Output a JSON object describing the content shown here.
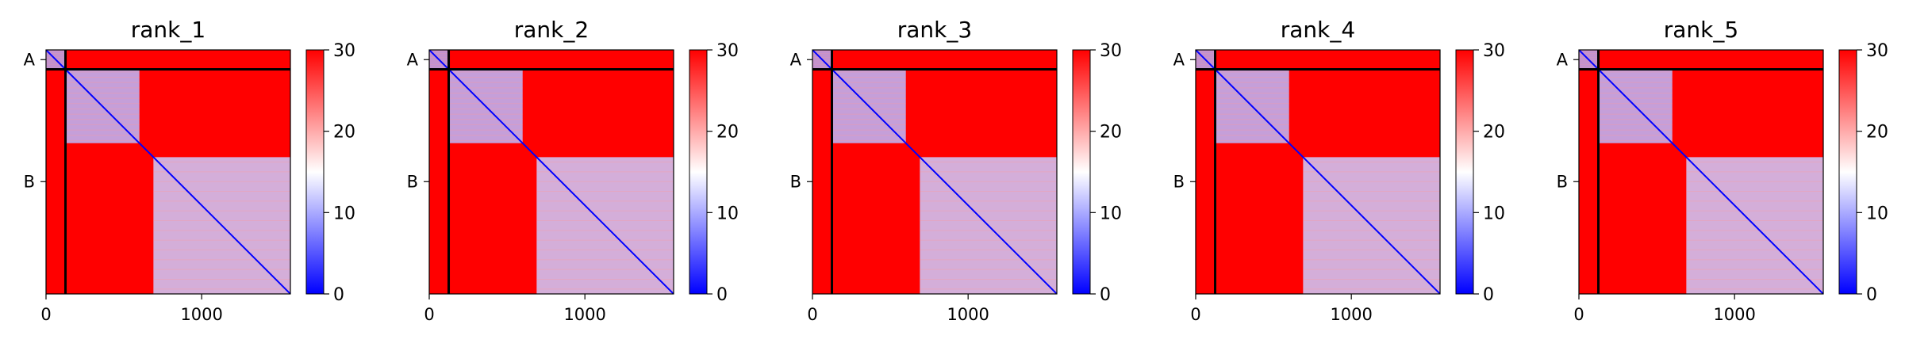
{
  "figure": {
    "background": "#ffffff"
  },
  "chart_data": [
    {
      "type": "heatmap",
      "title": "rank_1",
      "x_ticks": [
        0,
        1000
      ],
      "y_tick_labels": [
        "A",
        "B"
      ],
      "chain_boundary": 125,
      "xlim": [
        0,
        1570
      ],
      "colorbar": {
        "ticks": [
          0,
          10,
          20,
          30
        ],
        "range": [
          0,
          30
        ],
        "colors": [
          "#0000ff",
          "#ffffff",
          "#ff0000"
        ]
      },
      "blocks": [
        {
          "x": [
            0,
            125
          ],
          "y": [
            0,
            125
          ],
          "value": 10
        },
        {
          "x": [
            125,
            600
          ],
          "y": [
            125,
            600
          ],
          "value": 11
        },
        {
          "x": [
            690,
            1570
          ],
          "y": [
            690,
            1570
          ],
          "value": 12
        }
      ]
    },
    {
      "type": "heatmap",
      "title": "rank_2",
      "x_ticks": [
        0,
        1000
      ],
      "y_tick_labels": [
        "A",
        "B"
      ],
      "chain_boundary": 125,
      "xlim": [
        0,
        1570
      ],
      "colorbar": {
        "ticks": [
          0,
          10,
          20,
          30
        ],
        "range": [
          0,
          30
        ],
        "colors": [
          "#0000ff",
          "#ffffff",
          "#ff0000"
        ]
      },
      "blocks": [
        {
          "x": [
            0,
            125
          ],
          "y": [
            0,
            125
          ],
          "value": 10
        },
        {
          "x": [
            125,
            600
          ],
          "y": [
            125,
            600
          ],
          "value": 11
        },
        {
          "x": [
            690,
            1570
          ],
          "y": [
            690,
            1570
          ],
          "value": 12
        }
      ]
    },
    {
      "type": "heatmap",
      "title": "rank_3",
      "x_ticks": [
        0,
        1000
      ],
      "y_tick_labels": [
        "A",
        "B"
      ],
      "chain_boundary": 125,
      "xlim": [
        0,
        1570
      ],
      "colorbar": {
        "ticks": [
          0,
          10,
          20,
          30
        ],
        "range": [
          0,
          30
        ],
        "colors": [
          "#0000ff",
          "#ffffff",
          "#ff0000"
        ]
      },
      "blocks": [
        {
          "x": [
            0,
            125
          ],
          "y": [
            0,
            125
          ],
          "value": 10
        },
        {
          "x": [
            125,
            600
          ],
          "y": [
            125,
            600
          ],
          "value": 11
        },
        {
          "x": [
            690,
            1570
          ],
          "y": [
            690,
            1570
          ],
          "value": 12
        }
      ]
    },
    {
      "type": "heatmap",
      "title": "rank_4",
      "x_ticks": [
        0,
        1000
      ],
      "y_tick_labels": [
        "A",
        "B"
      ],
      "chain_boundary": 125,
      "xlim": [
        0,
        1570
      ],
      "colorbar": {
        "ticks": [
          0,
          10,
          20,
          30
        ],
        "range": [
          0,
          30
        ],
        "colors": [
          "#0000ff",
          "#ffffff",
          "#ff0000"
        ]
      },
      "blocks": [
        {
          "x": [
            0,
            125
          ],
          "y": [
            0,
            125
          ],
          "value": 10
        },
        {
          "x": [
            125,
            600
          ],
          "y": [
            125,
            600
          ],
          "value": 11
        },
        {
          "x": [
            690,
            1570
          ],
          "y": [
            690,
            1570
          ],
          "value": 12
        }
      ]
    },
    {
      "type": "heatmap",
      "title": "rank_5",
      "x_ticks": [
        0,
        1000
      ],
      "y_tick_labels": [
        "A",
        "B"
      ],
      "chain_boundary": 125,
      "xlim": [
        0,
        1570
      ],
      "colorbar": {
        "ticks": [
          0,
          10,
          20,
          30
        ],
        "range": [
          0,
          30
        ],
        "colors": [
          "#0000ff",
          "#ffffff",
          "#ff0000"
        ]
      },
      "blocks": [
        {
          "x": [
            0,
            125
          ],
          "y": [
            0,
            125
          ],
          "value": 10
        },
        {
          "x": [
            125,
            600
          ],
          "y": [
            125,
            600
          ],
          "value": 11
        },
        {
          "x": [
            690,
            1570
          ],
          "y": [
            690,
            1570
          ],
          "value": 12
        }
      ]
    }
  ]
}
